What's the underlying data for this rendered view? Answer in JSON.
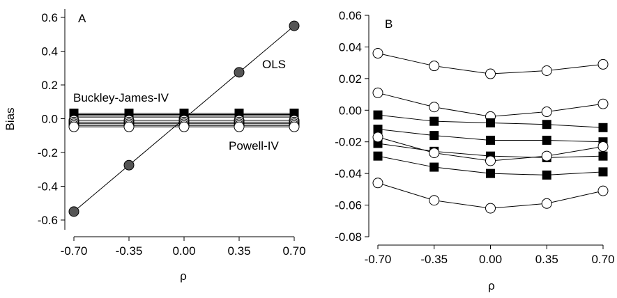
{
  "chart_data": [
    {
      "type": "line",
      "panel_label": "A",
      "xlabel": "ρ",
      "ylabel": "Bias",
      "x": [
        -0.7,
        -0.35,
        0.0,
        0.35,
        0.7
      ],
      "x_tick_labels": [
        "-0.70",
        "-0.35",
        "0.00",
        "0.35",
        "0.70"
      ],
      "xlim": [
        -0.7,
        0.7
      ],
      "ylim": [
        -0.6,
        0.6
      ],
      "y_ticks": [
        -0.6,
        -0.4,
        -0.2,
        0.0,
        0.2,
        0.4,
        0.6
      ],
      "y_tick_labels": [
        "-0.6",
        "-0.4",
        "-0.2",
        "0.0",
        "0.2",
        "0.4",
        "0.6"
      ],
      "grid": false,
      "annotations": [
        "OLS",
        "Buckley-James-IV",
        "Powell-IV"
      ],
      "series": [
        {
          "name": "OLS",
          "marker": "gray-circle",
          "values": [
            -0.55,
            -0.275,
            0.0,
            0.275,
            0.55
          ]
        },
        {
          "marker": "black-square",
          "values": [
            0.033,
            0.033,
            0.033,
            0.033,
            0.033
          ]
        },
        {
          "marker": "black-square",
          "values": [
            0.025,
            0.025,
            0.025,
            0.025,
            0.025
          ]
        },
        {
          "marker": "black-square",
          "values": [
            0.018,
            0.018,
            0.018,
            0.018,
            0.018
          ]
        },
        {
          "marker": "black-square",
          "values": [
            0.01,
            0.01,
            0.01,
            0.01,
            0.01
          ]
        },
        {
          "marker": "open-circle",
          "values": [
            -0.01,
            -0.01,
            -0.01,
            -0.01,
            -0.01
          ]
        },
        {
          "marker": "open-circle",
          "values": [
            -0.02,
            -0.02,
            -0.02,
            -0.02,
            -0.02
          ]
        },
        {
          "marker": "open-circle",
          "values": [
            -0.03,
            -0.03,
            -0.03,
            -0.03,
            -0.03
          ]
        },
        {
          "marker": "open-circle",
          "values": [
            -0.04,
            -0.04,
            -0.04,
            -0.04,
            -0.04
          ]
        },
        {
          "marker": "open-circle",
          "values": [
            -0.048,
            -0.048,
            -0.048,
            -0.048,
            -0.048
          ]
        }
      ]
    },
    {
      "type": "line",
      "panel_label": "B",
      "xlabel": "ρ",
      "ylabel": "",
      "x": [
        -0.7,
        -0.35,
        0.0,
        0.35,
        0.7
      ],
      "x_tick_labels": [
        "-0.70",
        "-0.35",
        "0.00",
        "0.35",
        "0.70"
      ],
      "xlim": [
        -0.7,
        0.7
      ],
      "ylim": [
        -0.08,
        0.06
      ],
      "y_ticks": [
        -0.08,
        -0.06,
        -0.04,
        -0.02,
        0.0,
        0.02,
        0.04,
        0.06
      ],
      "y_tick_labels": [
        "-0.08",
        "-0.06",
        "-0.04",
        "-0.02",
        "0.00",
        "0.02",
        "0.04",
        "0.06"
      ],
      "grid": false,
      "series": [
        {
          "marker": "open-circle",
          "values": [
            0.036,
            0.028,
            0.023,
            0.025,
            0.029
          ]
        },
        {
          "marker": "open-circle",
          "values": [
            0.011,
            0.002,
            -0.004,
            -0.001,
            0.004
          ]
        },
        {
          "marker": "black-square",
          "values": [
            -0.003,
            -0.007,
            -0.008,
            -0.009,
            -0.011
          ]
        },
        {
          "marker": "black-square",
          "values": [
            -0.012,
            -0.016,
            -0.019,
            -0.019,
            -0.02
          ]
        },
        {
          "marker": "black-square",
          "values": [
            -0.021,
            -0.026,
            -0.029,
            -0.03,
            -0.029
          ]
        },
        {
          "marker": "open-circle",
          "values": [
            -0.017,
            -0.027,
            -0.032,
            -0.029,
            -0.023
          ]
        },
        {
          "marker": "black-square",
          "values": [
            -0.029,
            -0.036,
            -0.04,
            -0.041,
            -0.039
          ]
        },
        {
          "marker": "open-circle",
          "values": [
            -0.046,
            -0.057,
            -0.062,
            -0.059,
            -0.051
          ]
        }
      ]
    }
  ]
}
